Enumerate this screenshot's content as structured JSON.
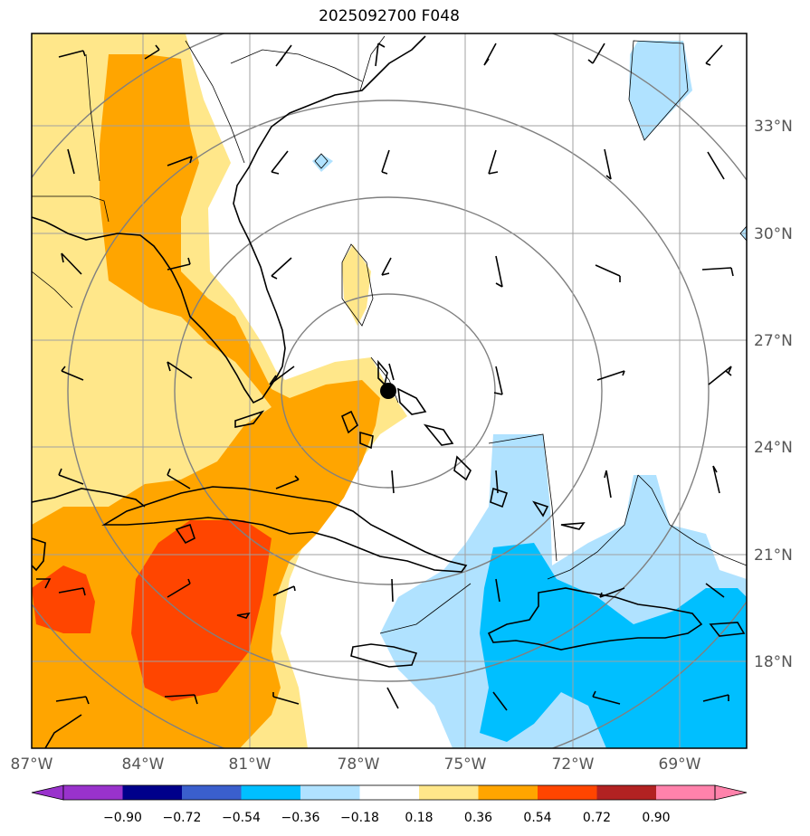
{
  "title": "2025092700 F048",
  "map": {
    "lon_range": [
      -87,
      -66.5
    ],
    "lat_range": [
      15.5,
      35.5
    ],
    "lon_ticks": [
      "87°W",
      "84°W",
      "81°W",
      "78°W",
      "75°W",
      "72°W",
      "69°W"
    ],
    "lat_ticks": [
      "33°N",
      "30°N",
      "27°N",
      "24°N",
      "21°N",
      "18°N"
    ],
    "storm_center": {
      "lon": -77.3,
      "lat": 25.6
    },
    "range_rings_deg": [
      3,
      6,
      9,
      12
    ],
    "colors": {
      "land_line": "#000000",
      "grid": "#a0a0a0",
      "ring": "#808080"
    }
  },
  "colorbar": {
    "levels": [
      "−0.90",
      "−0.72",
      "−0.54",
      "−0.36",
      "−0.18",
      "0.18",
      "0.36",
      "0.54",
      "0.72",
      "0.90"
    ],
    "colors": [
      "#9932cc",
      "#00008b",
      "#3a5fcd",
      "#00bfff",
      "#b0e2ff",
      "#ffffff",
      "#ffe78a",
      "#ffa500",
      "#ff4500",
      "#b22222",
      "#ff82ab"
    ]
  }
}
